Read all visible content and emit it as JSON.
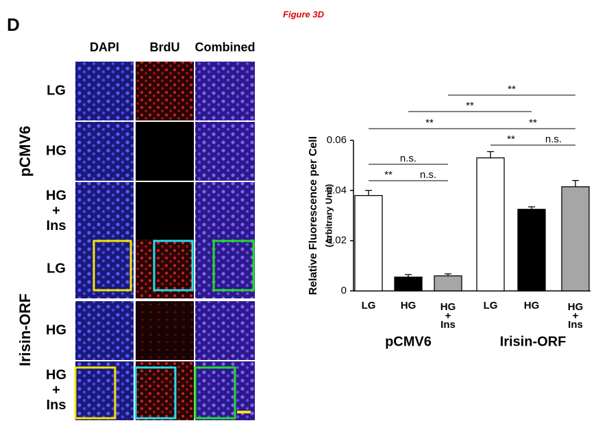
{
  "figure_label": "D",
  "figure_title": "Figure 3D",
  "images": {
    "columns": [
      "DAPI",
      "BrdU",
      "Combined"
    ],
    "groups": [
      {
        "name": "pCMV6",
        "rows": [
          "LG",
          "HG",
          "HG + Ins"
        ]
      },
      {
        "name": "Irisin-ORF",
        "rows": [
          "LG",
          "HG",
          "HG + Ins"
        ]
      }
    ]
  },
  "chart_data": {
    "type": "bar",
    "y_label": "Relative Fluorescence per Cell",
    "y_sublabel": "(Arbitrary Unit)",
    "categories": [
      "LG",
      "HG",
      "HG + Ins",
      "LG",
      "HG",
      "HG + Ins"
    ],
    "groups": [
      "pCMV6",
      "Irisin-ORF"
    ],
    "values": [
      0.038,
      0.0055,
      0.006,
      0.053,
      0.0325,
      0.0415
    ],
    "errors": [
      0.002,
      0.001,
      0.0008,
      0.0025,
      0.001,
      0.0025
    ],
    "colors": [
      "#ffffff",
      "#000000",
      "#a6a6a6",
      "#ffffff",
      "#000000",
      "#a6a6a6"
    ],
    "ylim": [
      0,
      0.06
    ],
    "yticks": [
      0,
      0.02,
      0.04,
      0.06
    ],
    "annotations": [
      "**",
      "n.s.",
      "n.s.",
      "**",
      "n.s.",
      "**",
      "**",
      "**",
      "**"
    ]
  }
}
